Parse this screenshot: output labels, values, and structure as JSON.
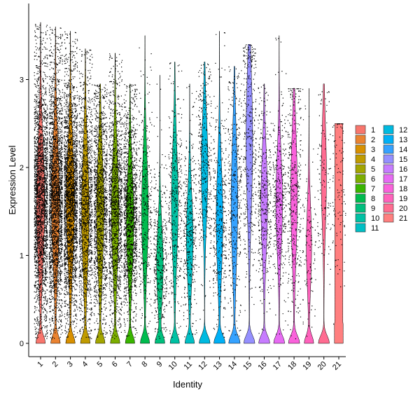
{
  "chart_data": {
    "type": "violin",
    "xlabel": "Identity",
    "ylabel": "Expression Level",
    "ylim": [
      -0.15,
      3.9
    ],
    "yticks": [
      0,
      1,
      2,
      3
    ],
    "grid": false,
    "legend_position": "right",
    "legend_columns": 2,
    "categories": [
      "1",
      "2",
      "3",
      "4",
      "5",
      "6",
      "7",
      "8",
      "9",
      "10",
      "11",
      "12",
      "13",
      "14",
      "15",
      "16",
      "17",
      "18",
      "19",
      "20",
      "21"
    ],
    "colors": [
      "#F8766D",
      "#EA8331",
      "#D89000",
      "#C09B00",
      "#A3A500",
      "#7CAE00",
      "#39B600",
      "#00BB4E",
      "#00BF7D",
      "#00C1A3",
      "#00BFC4",
      "#00BAE0",
      "#00B0F6",
      "#35A2FF",
      "#9590FF",
      "#C77CFF",
      "#E76BF3",
      "#FA62DB",
      "#FF62BC",
      "#FF6C91",
      "#FF7F7F"
    ],
    "series": [
      {
        "name": "1",
        "max": 3.65,
        "body_low": 0.6,
        "body_high": 2.6,
        "body_center": 1.6,
        "zero_fraction": "high",
        "cell_density": "very high"
      },
      {
        "name": "2",
        "max": 3.6,
        "body_low": 0.6,
        "body_high": 2.6,
        "body_center": 1.6,
        "zero_fraction": "high",
        "cell_density": "very high"
      },
      {
        "name": "3",
        "max": 3.55,
        "body_low": 0.6,
        "body_high": 2.5,
        "body_center": 1.6,
        "zero_fraction": "high",
        "cell_density": "very high"
      },
      {
        "name": "4",
        "max": 3.35,
        "body_low": 0.4,
        "body_high": 2.4,
        "body_center": 1.5,
        "zero_fraction": "high",
        "cell_density": "high"
      },
      {
        "name": "5",
        "max": 2.95,
        "body_low": 0.5,
        "body_high": 2.4,
        "body_center": 1.5,
        "zero_fraction": "high",
        "cell_density": "high"
      },
      {
        "name": "6",
        "max": 3.3,
        "body_low": 0.6,
        "body_high": 2.5,
        "body_center": 1.5,
        "zero_fraction": "high",
        "cell_density": "high"
      },
      {
        "name": "7",
        "max": 2.95,
        "body_low": 0.6,
        "body_high": 2.3,
        "body_center": 1.4,
        "zero_fraction": "high",
        "cell_density": "high"
      },
      {
        "name": "8",
        "max": 3.5,
        "body_low": 0.6,
        "body_high": 2.4,
        "body_center": 1.5,
        "zero_fraction": "high",
        "cell_density": "medium"
      },
      {
        "name": "9",
        "max": 3.05,
        "body_low": 0.3,
        "body_high": 1.6,
        "body_center": 0.9,
        "zero_fraction": "high",
        "cell_density": "medium"
      },
      {
        "name": "10",
        "max": 3.2,
        "body_low": 0.7,
        "body_high": 2.6,
        "body_center": 1.6,
        "zero_fraction": "high",
        "cell_density": "medium"
      },
      {
        "name": "11",
        "max": 2.95,
        "body_low": 0.5,
        "body_high": 2.0,
        "body_center": 1.2,
        "zero_fraction": "high",
        "cell_density": "medium"
      },
      {
        "name": "12",
        "max": 3.2,
        "body_low": 1.0,
        "body_high": 2.7,
        "body_center": 2.0,
        "zero_fraction": "medium",
        "cell_density": "medium"
      },
      {
        "name": "13",
        "max": 3.55,
        "body_low": 0.5,
        "body_high": 2.3,
        "body_center": 1.4,
        "zero_fraction": "medium",
        "cell_density": "medium"
      },
      {
        "name": "14",
        "max": 3.15,
        "body_low": 0.6,
        "body_high": 2.7,
        "body_center": 1.6,
        "zero_fraction": "medium",
        "cell_density": "medium"
      },
      {
        "name": "15",
        "max": 3.4,
        "body_low": 0.8,
        "body_high": 3.1,
        "body_center": 2.3,
        "zero_fraction": "medium",
        "cell_density": "medium"
      },
      {
        "name": "16",
        "max": 2.95,
        "body_low": 0.8,
        "body_high": 2.5,
        "body_center": 1.6,
        "zero_fraction": "medium",
        "cell_density": "medium"
      },
      {
        "name": "17",
        "max": 3.5,
        "body_low": 0.8,
        "body_high": 2.4,
        "body_center": 1.6,
        "zero_fraction": "medium",
        "cell_density": "medium"
      },
      {
        "name": "18",
        "max": 2.9,
        "body_low": 0.9,
        "body_high": 2.9,
        "body_center": 1.7,
        "zero_fraction": "medium",
        "cell_density": "medium"
      },
      {
        "name": "19",
        "max": 2.9,
        "body_low": 0.4,
        "body_high": 1.8,
        "body_center": 1.1,
        "zero_fraction": "high",
        "cell_density": "low"
      },
      {
        "name": "20",
        "max": 2.95,
        "body_low": 1.0,
        "body_high": 2.7,
        "body_center": 1.9,
        "zero_fraction": "medium",
        "cell_density": "low"
      },
      {
        "name": "21",
        "max": 2.5,
        "body_low": 0.8,
        "body_high": 2.5,
        "body_center": 1.8,
        "zero_fraction": "low",
        "cell_density": "low"
      }
    ]
  }
}
